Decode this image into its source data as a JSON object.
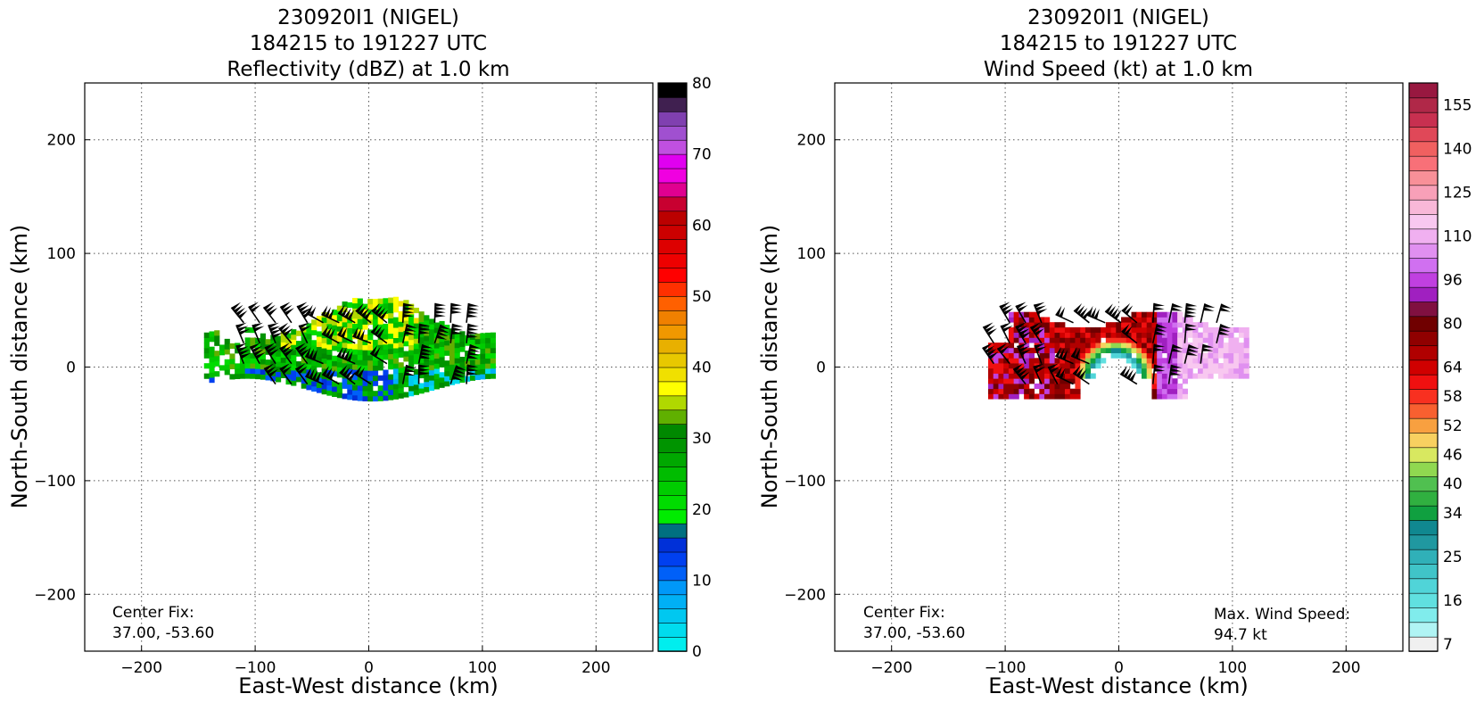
{
  "chart_data": [
    {
      "type": "heatmap",
      "title_lines": [
        "230920I1 (NIGEL)",
        "184215 to 191227 UTC",
        "Reflectivity (dBZ) at 1.0 km"
      ],
      "xlabel": "East-West distance (km)",
      "ylabel": "North-South distance (km)",
      "xlim": [
        -250,
        250
      ],
      "ylim": [
        -250,
        250
      ],
      "xticks": [
        -200,
        -100,
        0,
        100,
        200
      ],
      "yticks": [
        -200,
        -100,
        0,
        100,
        200
      ],
      "xtick_labels": [
        "−200",
        "−100",
        "0",
        "100",
        "200"
      ],
      "ytick_labels": [
        "−200",
        "−100",
        "0",
        "100",
        "200"
      ],
      "grid": true,
      "annotation_left": [
        "Center Fix:",
        "37.00, -53.60"
      ],
      "colorbar": {
        "min": 0,
        "max": 80,
        "tick_values": [
          0,
          10,
          20,
          30,
          40,
          50,
          60,
          70,
          80
        ],
        "tick_labels": [
          "0",
          "10",
          "20",
          "30",
          "40",
          "50",
          "60",
          "70",
          "80"
        ],
        "colors": [
          "#00eeee",
          "#00dcee",
          "#00c8f0",
          "#00b0f5",
          "#0098f8",
          "#0060f8",
          "#0040f0",
          "#0030d8",
          "#007080",
          "#00ec00",
          "#00dc00",
          "#00cc00",
          "#00bc00",
          "#00a800",
          "#009400",
          "#008800",
          "#60b000",
          "#b0d800",
          "#ffff00",
          "#f0e000",
          "#e8c800",
          "#e8b000",
          "#f09800",
          "#f08000",
          "#ff6000",
          "#ff3000",
          "#ff0000",
          "#ee0000",
          "#dd0000",
          "#cc0000",
          "#bb0000",
          "#c80030",
          "#e00090",
          "#f000e0",
          "#e000f0",
          "#c050e0",
          "#a050d0",
          "#8040b0",
          "#402050",
          "#000000"
        ]
      },
      "echo_region_extent_km": {
        "x": [
          -145,
          110
        ],
        "y": [
          -35,
          60
        ]
      }
    },
    {
      "type": "heatmap",
      "title_lines": [
        "230920I1 (NIGEL)",
        "184215 to 191227 UTC",
        "Wind Speed (kt) at 1.0 km"
      ],
      "xlabel": "East-West distance (km)",
      "ylabel": "North-South distance (km)",
      "xlim": [
        -250,
        250
      ],
      "ylim": [
        -250,
        250
      ],
      "xticks": [
        -200,
        -100,
        0,
        100,
        200
      ],
      "yticks": [
        -200,
        -100,
        0,
        100,
        200
      ],
      "xtick_labels": [
        "−200",
        "−100",
        "0",
        "100",
        "200"
      ],
      "ytick_labels": [
        "−200",
        "−100",
        "0",
        "100",
        "200"
      ],
      "grid": true,
      "annotation_left": [
        "Center Fix:",
        "37.00, -53.60"
      ],
      "annotation_right": [
        "Max. Wind Speed:",
        "94.7 kt"
      ],
      "max_wind_speed_kt": 94.7,
      "colorbar": {
        "tick_labels": [
          "7",
          "16",
          "25",
          "34",
          "40",
          "46",
          "52",
          "58",
          "64",
          "80",
          "96",
          "110",
          "125",
          "140",
          "155"
        ],
        "tick_bin_index": [
          0,
          3,
          6,
          9,
          11,
          13,
          15,
          17,
          19,
          22,
          25,
          28,
          31,
          34,
          37
        ],
        "colors": [
          "#f0f0f0",
          "#b0f4f4",
          "#80ecec",
          "#60e0e0",
          "#50d4d8",
          "#40c4c8",
          "#30b0b8",
          "#2098a0",
          "#108890",
          "#10a040",
          "#30b040",
          "#50c050",
          "#90d850",
          "#d8e860",
          "#f8d060",
          "#f8a040",
          "#f86030",
          "#f83020",
          "#f01010",
          "#d00000",
          "#b00000",
          "#900000",
          "#700000",
          "#801040",
          "#a020c0",
          "#c040e0",
          "#d070f0",
          "#e090f0",
          "#f0b0f0",
          "#f8c8f0",
          "#f8b8d8",
          "#f8a0b8",
          "#f89098",
          "#f87078",
          "#f06060",
          "#e04858",
          "#c83050",
          "#b02848",
          "#981840"
        ]
      },
      "echo_region_extent_km": {
        "x": [
          -115,
          110
        ],
        "y": [
          -28,
          48
        ]
      }
    }
  ]
}
